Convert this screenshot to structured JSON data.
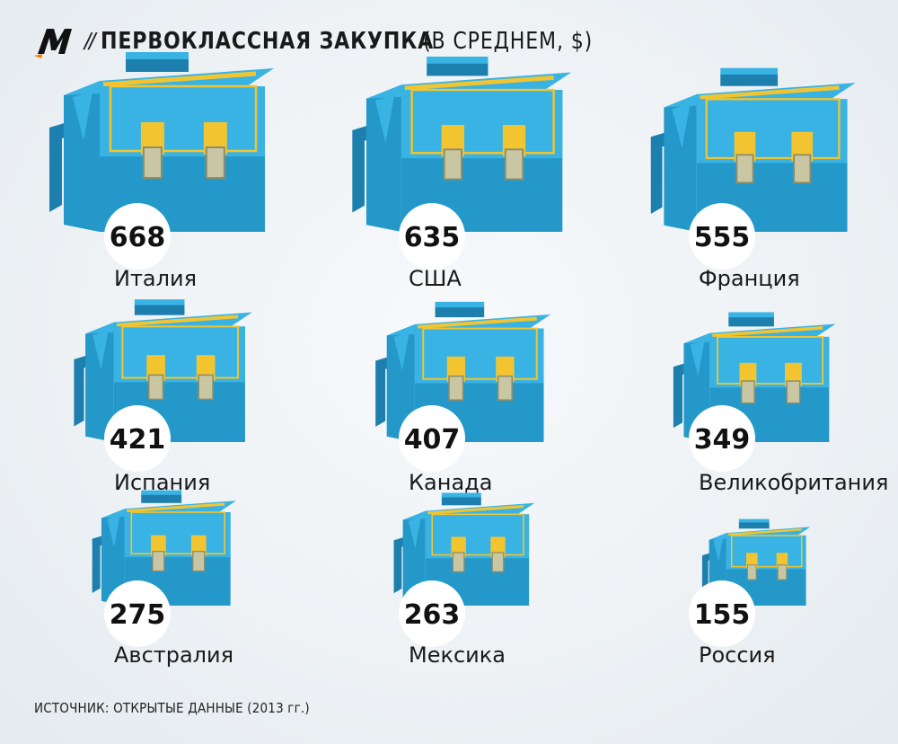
{
  "header": {
    "title": "ПЕРВОКЛАССНАЯ ЗАКУПКА",
    "subtitle": "(В СРЕДНЕМ, $)",
    "separator": "//"
  },
  "source": "ИСТОЧНИК: ОТКРЫТЫЕ ДАННЫЕ (2013 гг.)",
  "colors": {
    "bag_body": "#2499c9",
    "bag_side": "#1d7fae",
    "bag_flap": "#39b3e4",
    "accent": "#f2c530",
    "clasp_tab": "#c9c7a3",
    "logo_accent": "#ff7a00"
  },
  "chart_data": {
    "type": "pictogram",
    "unit": "$",
    "categories": [
      "Италия",
      "США",
      "Франция",
      "Испания",
      "Канада",
      "Великобритания",
      "Австралия",
      "Мексика",
      "Россия"
    ],
    "values": [
      668,
      635,
      555,
      421,
      407,
      349,
      275,
      263,
      155
    ],
    "icon": "schoolbag-icon"
  }
}
